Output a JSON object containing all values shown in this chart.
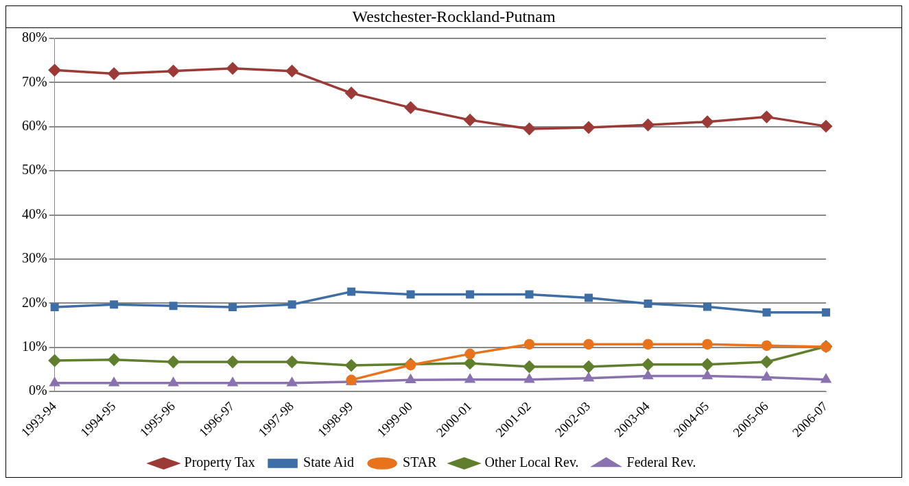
{
  "chart_data": {
    "type": "line",
    "title": "Westchester-Rockland-Putnam",
    "categories": [
      "1993-94",
      "1994-95",
      "1995-96",
      "1996-97",
      "1997-98",
      "1998-99",
      "1999-00",
      "2000-01",
      "2001-02",
      "2002-03",
      "2003-04",
      "2004-05",
      "2005-06",
      "2006-07"
    ],
    "series": [
      {
        "name": "Property Tax",
        "color": "#9b3a36",
        "marker": "diamond",
        "values": [
          72.8,
          72.0,
          72.6,
          73.2,
          72.6,
          67.6,
          64.3,
          61.5,
          59.5,
          59.8,
          60.4,
          61.1,
          62.2,
          60.1
        ]
      },
      {
        "name": "State Aid",
        "color": "#3e6ea5",
        "marker": "square",
        "values": [
          19.1,
          19.7,
          19.4,
          19.1,
          19.7,
          22.6,
          22.0,
          22.0,
          22.0,
          21.2,
          19.9,
          19.2,
          17.9,
          17.9
        ]
      },
      {
        "name": "STAR",
        "color": "#e8731c",
        "marker": "circle",
        "values": [
          null,
          null,
          null,
          null,
          null,
          2.6,
          6.0,
          8.5,
          10.7,
          10.7,
          10.7,
          10.7,
          10.4,
          10.1
        ]
      },
      {
        "name": "Other Local Rev.",
        "color": "#5f7f2e",
        "marker": "diamond",
        "values": [
          7.0,
          7.2,
          6.7,
          6.7,
          6.7,
          5.9,
          6.2,
          6.4,
          5.6,
          5.6,
          6.1,
          6.1,
          6.7,
          10.2
        ]
      },
      {
        "name": "Federal Rev.",
        "color": "#8a72b0",
        "marker": "triangle",
        "values": [
          1.9,
          1.9,
          1.9,
          1.9,
          1.9,
          2.2,
          2.6,
          2.7,
          2.7,
          3.0,
          3.5,
          3.5,
          3.2,
          2.7
        ]
      }
    ],
    "ylim": [
      0,
      80
    ],
    "yticks": [
      {
        "value": 0,
        "label": "0%"
      },
      {
        "value": 10,
        "label": "10%"
      },
      {
        "value": 20,
        "label": "20%"
      },
      {
        "value": 30,
        "label": "30%"
      },
      {
        "value": 40,
        "label": "40%"
      },
      {
        "value": 50,
        "label": "50%"
      },
      {
        "value": 60,
        "label": "60%"
      },
      {
        "value": 70,
        "label": "70%"
      },
      {
        "value": 80,
        "label": "80%"
      }
    ],
    "grid": "y",
    "legend": "bottom",
    "line_style": "solid"
  }
}
